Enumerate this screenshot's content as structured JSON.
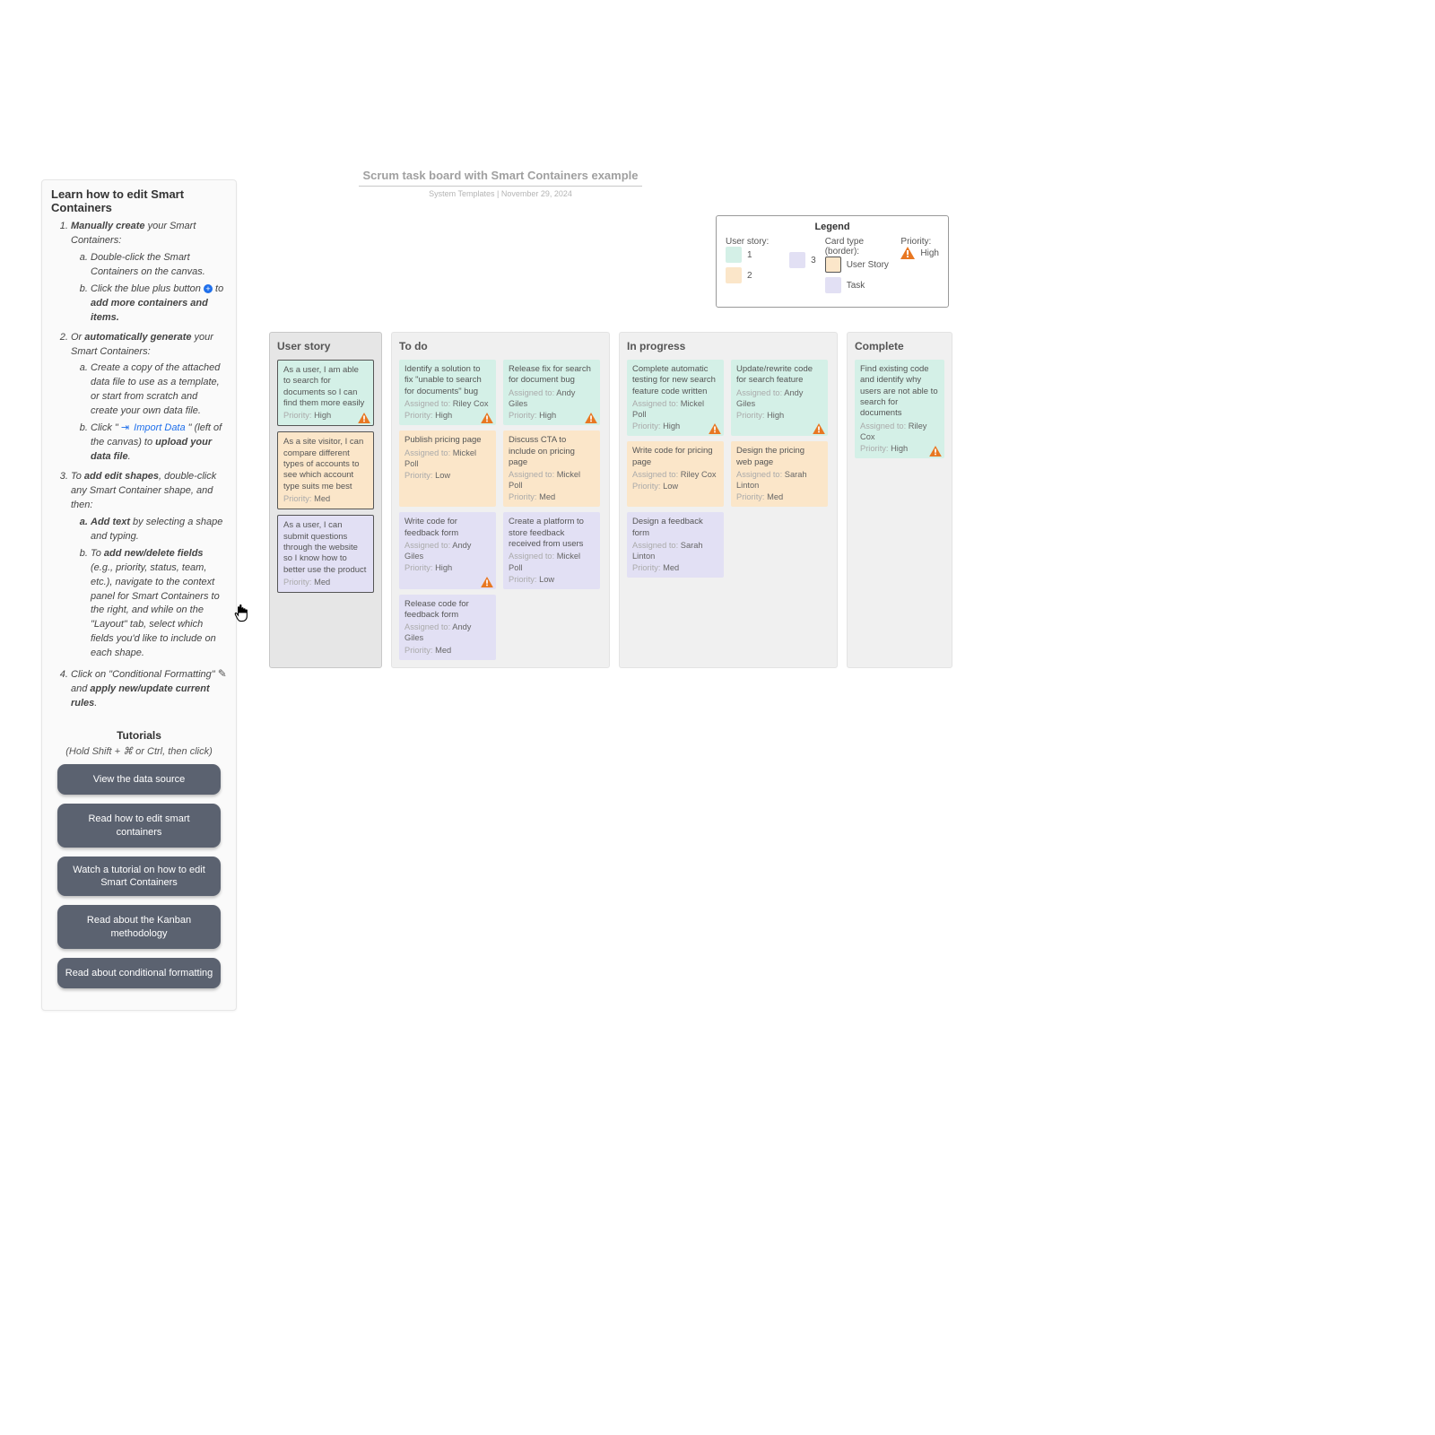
{
  "colors": {
    "story1": "#d4f0e7",
    "story2": "#fbe6c9",
    "story3": "#e2e0f4",
    "warn": "#e87722",
    "btn": "#5b6270",
    "link": "#1f6feb"
  },
  "panel": {
    "heading": "Learn how to edit Smart Containers",
    "step1_lead": "Manually create",
    "step1_tail": " your Smart Containers:",
    "step1a": "Double-click the Smart Containers on the canvas.",
    "step1b_lead": "Click the blue plus button ",
    "step1b_mid": " to ",
    "step1b_bold": "add more containers and items.",
    "step2_lead": "Or ",
    "step2_bold": "automatically generate",
    "step2_tail": " your Smart Containers:",
    "step2a": "Create a copy of the attached data file to use as a template, or start from scratch and create your own data file.",
    "step2b_lead": "Click \"",
    "step2b_link": "Import Data",
    "step2b_mid": "\" (left of the canvas) to ",
    "step2b_bold": "upload your data file",
    "step2b_end": ".",
    "step3_lead": "To ",
    "step3_bold": "add edit shapes",
    "step3_tail": ", double-click any Smart Container shape, and then:",
    "step3a_bold": "Add text",
    "step3a_tail": " by selecting a shape and typing.",
    "step3b_lead": "To ",
    "step3b_bold": "add new/delete fields",
    "step3b_tail": " (e.g., priority, status, team, etc.), navigate to the context panel for Smart Containers to the right, and while on the \"Layout\" tab, select which fields you'd like to include on each shape.",
    "step4_lead": "Click on \"Conditional Formatting\" ",
    "step4_mid": " and ",
    "step4_bold": "apply new/update current rules",
    "step4_end": ".",
    "tutorials": "Tutorials",
    "tutorials_sub": "(Hold Shift + ⌘ or Ctrl, then click)",
    "btn1": "View the data source",
    "btn2": "Read how to edit smart containers",
    "btn3": "Watch a tutorial on how to edit Smart Containers",
    "btn4": "Read about the Kanban methodology",
    "btn5": "Read about conditional formatting"
  },
  "title": {
    "main": "Scrum task board with Smart Containers example",
    "sub": "System Templates  |  November 29, 2024"
  },
  "legend": {
    "heading": "Legend",
    "col1": "User story:",
    "col2": "Card type (border):",
    "col3": "Priority:",
    "s1": "1",
    "s2": "2",
    "s3": "3",
    "type_us": "User Story",
    "type_task": "Task",
    "prio_high": "High"
  },
  "columns": {
    "story": "User story",
    "todo": "To do",
    "inprog": "In progress",
    "complete": "Complete"
  },
  "stories": [
    {
      "text": "As a user, I am able to search for documents so I can find them more easily",
      "prio": "High",
      "story": 1,
      "alert": true
    },
    {
      "text": "As a site visitor, I can compare different types of accounts to see which account type suits me best",
      "prio": "Med",
      "story": 2,
      "alert": false
    },
    {
      "text": "As a user, I can submit questions through the website so I know how to better use the product",
      "prio": "Med",
      "story": 3,
      "alert": false
    }
  ],
  "todo": [
    {
      "text": "Identify a solution to fix \"unable to search for documents\" bug",
      "assignee": "Riley Cox",
      "prio": "High",
      "story": 1,
      "alert": true
    },
    {
      "text": "Release fix for search for document bug",
      "assignee": "Andy Giles",
      "prio": "High",
      "story": 1,
      "alert": true
    },
    {
      "text": "Publish pricing page",
      "assignee": "Mickel Poll",
      "prio": "Low",
      "story": 2
    },
    {
      "text": "Discuss CTA to include on pricing page",
      "assignee": "Mickel Poll",
      "prio": "Med",
      "story": 2
    },
    {
      "text": "Write code for feedback form",
      "assignee": "Andy Giles",
      "prio": "High",
      "story": 3,
      "alert": true
    },
    {
      "text": "Create a platform to store feedback received from users",
      "assignee": "Mickel Poll",
      "prio": "Low",
      "story": 3
    },
    {
      "text": "Release code for feedback form",
      "assignee": "Andy Giles",
      "prio": "Med",
      "story": 3
    }
  ],
  "inprog": [
    {
      "text": "Complete automatic testing for new search feature code written",
      "assignee": "Mickel Poll",
      "prio": "High",
      "story": 1,
      "alert": true
    },
    {
      "text": "Update/rewrite code for search feature",
      "assignee": "Andy Giles",
      "prio": "High",
      "story": 1,
      "alert": true
    },
    {
      "text": "Write code for pricing page",
      "assignee": "Riley Cox",
      "prio": "Low",
      "story": 2
    },
    {
      "text": "Design the pricing web page",
      "assignee": "Sarah Linton",
      "prio": "Med",
      "story": 2
    },
    {
      "text": "Design a feedback form",
      "assignee": "Sarah Linton",
      "prio": "Med",
      "story": 3
    }
  ],
  "complete": [
    {
      "text": "Find existing code and identify why users are not able to search for documents",
      "assignee": "Riley Cox",
      "prio": "High",
      "story": 1,
      "alert": true
    }
  ],
  "labels": {
    "assigned": "Assigned to: ",
    "priority": "Priority: "
  }
}
